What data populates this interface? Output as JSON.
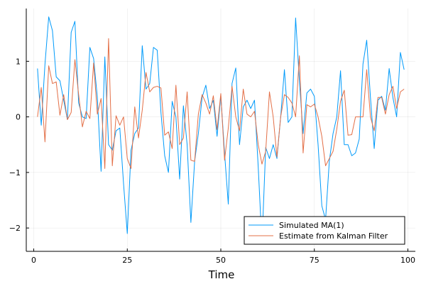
{
  "chart_data": {
    "type": "line",
    "title": "",
    "xlabel": "Time",
    "ylabel": "",
    "xlim": [
      -2,
      102
    ],
    "ylim": [
      -2.42,
      1.95
    ],
    "grid": true,
    "legend_position": "bottom-right",
    "x_ticks": [
      0,
      25,
      50,
      75,
      100
    ],
    "x_tick_labels": [
      "0",
      "25",
      "50",
      "75",
      "100"
    ],
    "y_ticks": [
      1,
      0,
      -1,
      -2
    ],
    "y_tick_labels": [
      "1",
      "0",
      "−1",
      "−2"
    ],
    "x": [
      1,
      2,
      3,
      4,
      5,
      6,
      7,
      8,
      9,
      10,
      11,
      12,
      13,
      14,
      15,
      16,
      17,
      18,
      19,
      20,
      21,
      22,
      23,
      24,
      25,
      26,
      27,
      28,
      29,
      30,
      31,
      32,
      33,
      34,
      35,
      36,
      37,
      38,
      39,
      40,
      41,
      42,
      43,
      44,
      45,
      46,
      47,
      48,
      49,
      50,
      51,
      52,
      53,
      54,
      55,
      56,
      57,
      58,
      59,
      60,
      61,
      62,
      63,
      64,
      65,
      66,
      67,
      68,
      69,
      70,
      71,
      72,
      73,
      74,
      75,
      76,
      77,
      78,
      79,
      80,
      81,
      82,
      83,
      84,
      85,
      86,
      87,
      88,
      89,
      90,
      91,
      92,
      93,
      94,
      95,
      96,
      97,
      98,
      99
    ],
    "series": [
      {
        "name": "Simulated MA(1)",
        "color": "#009AFA",
        "values": [
          0.87,
          -0.15,
          0.95,
          1.8,
          1.55,
          0.72,
          0.65,
          0.3,
          -0.05,
          1.52,
          1.72,
          0.25,
          0.0,
          -0.03,
          1.25,
          1.05,
          0.35,
          -0.98,
          1.08,
          -0.5,
          -0.6,
          -0.25,
          -0.2,
          -1.2,
          -2.1,
          -0.6,
          -0.3,
          -0.2,
          1.28,
          0.5,
          0.6,
          1.25,
          1.2,
          0.08,
          -0.7,
          -1.0,
          0.28,
          0.0,
          -1.12,
          0.2,
          -0.5,
          -1.9,
          -0.8,
          -0.3,
          0.35,
          0.57,
          0.15,
          0.3,
          -0.35,
          0.38,
          -0.65,
          -1.57,
          0.6,
          0.88,
          -0.5,
          0.18,
          0.3,
          0.15,
          0.3,
          -0.9,
          -2.28,
          -0.55,
          -0.75,
          -0.5,
          -0.75,
          0.0,
          0.85,
          -0.1,
          0.0,
          1.78,
          0.65,
          -0.3,
          0.43,
          0.5,
          0.37,
          -0.5,
          -1.6,
          -1.85,
          -0.8,
          -0.3,
          0.0,
          0.83,
          -0.5,
          -0.5,
          -0.7,
          -0.65,
          -0.4,
          0.95,
          1.38,
          0.35,
          -0.57,
          0.3,
          0.37,
          0.12,
          0.87,
          0.35,
          0.0,
          1.16,
          0.85
        ]
      },
      {
        "name": "Estimate from Kalman Filter",
        "color": "#E36F47",
        "values": [
          0.0,
          0.53,
          -0.45,
          0.92,
          0.6,
          0.63,
          0.03,
          0.4,
          -0.05,
          0.08,
          1.03,
          0.4,
          -0.18,
          0.1,
          -0.03,
          0.97,
          0.05,
          0.33,
          -0.93,
          1.41,
          -0.88,
          0.02,
          -0.15,
          0.0,
          -0.75,
          -0.93,
          0.18,
          -0.38,
          0.12,
          0.8,
          0.45,
          0.53,
          0.55,
          0.52,
          -0.33,
          -0.27,
          -0.57,
          0.57,
          -0.5,
          -0.38,
          0.45,
          -0.78,
          -0.8,
          0.05,
          0.4,
          0.25,
          0.05,
          0.38,
          -0.23,
          0.42,
          -0.78,
          -0.2,
          0.55,
          0.0,
          -0.25,
          0.5,
          0.05,
          0.0,
          0.1,
          -0.5,
          -0.85,
          -0.62,
          0.45,
          0.0,
          -0.72,
          0.0,
          0.4,
          0.35,
          0.25,
          0.0,
          1.1,
          -0.65,
          0.22,
          0.18,
          0.23,
          0.0,
          -0.35,
          -0.88,
          -0.75,
          -0.62,
          -0.22,
          0.28,
          0.48,
          -0.33,
          -0.32,
          0.0,
          0.0,
          0.0,
          0.85,
          0.0,
          -0.25,
          0.35,
          0.35,
          0.05,
          0.4,
          0.55,
          0.15,
          0.45,
          0.5
        ]
      }
    ]
  }
}
